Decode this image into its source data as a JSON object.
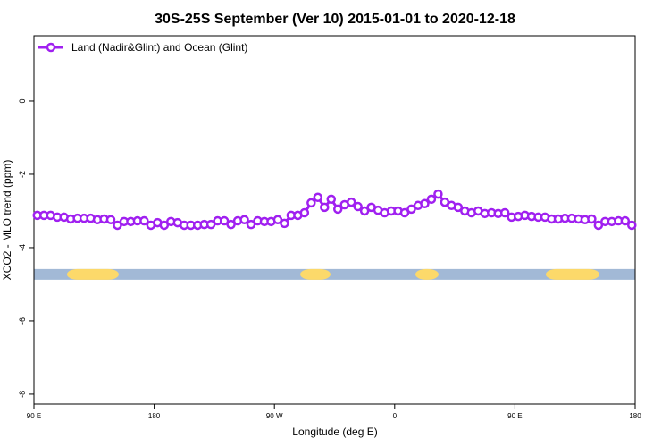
{
  "chart_data": {
    "type": "line",
    "title": "30S-25S September (Ver 10)   2015-01-01 to 2020-12-18",
    "x_label": "Longitude (deg E)",
    "y_label": "XCO2 - MLO trend (ppm)",
    "xlim": [
      90,
      540
    ],
    "ylim": [
      -8.27,
      1.78
    ],
    "xticks": [
      {
        "value": 90,
        "label": "90 E"
      },
      {
        "value": 180,
        "label": "180"
      },
      {
        "value": 270,
        "label": "90 W"
      },
      {
        "value": 360,
        "label": "0"
      },
      {
        "value": 450,
        "label": "90 E"
      },
      {
        "value": 540,
        "label": "180"
      }
    ],
    "yticks": [
      0,
      -2,
      -4,
      -6,
      -8
    ],
    "legend": "top-left",
    "x": [
      92.5,
      97.5,
      102.5,
      107.5,
      112.5,
      117.5,
      122.5,
      127.5,
      132.5,
      137.5,
      142.5,
      147.5,
      152.5,
      157.5,
      162.5,
      167.5,
      172.5,
      177.5,
      182.5,
      187.5,
      192.5,
      197.5,
      202.5,
      207.5,
      212.5,
      217.5,
      222.5,
      227.5,
      232.5,
      237.5,
      242.5,
      247.5,
      252.5,
      257.5,
      262.5,
      267.5,
      272.5,
      277.5,
      282.5,
      287.5,
      292.5,
      297.5,
      302.5,
      307.5,
      312.5,
      317.5,
      322.5,
      327.5,
      332.5,
      337.5,
      342.5,
      347.5,
      352.5,
      357.5,
      362.5,
      367.5,
      372.5,
      377.5,
      382.5,
      387.5,
      392.5,
      397.5,
      402.5,
      407.5,
      412.5,
      417.5,
      422.5,
      427.5,
      432.5,
      437.5,
      442.5,
      447.5,
      452.5,
      457.5,
      462.5,
      467.5,
      472.5,
      477.5,
      482.5,
      487.5,
      492.5,
      497.5,
      502.5,
      507.5,
      512.5,
      517.5,
      522.5,
      527.5,
      532.5,
      537.5
    ],
    "series": [
      {
        "name": "Land (Nadir&Glint) and Ocean (Glint)",
        "color": "#a020f0",
        "values": [
          -3.12,
          -3.12,
          -3.12,
          -3.17,
          -3.17,
          -3.22,
          -3.2,
          -3.2,
          -3.2,
          -3.24,
          -3.22,
          -3.24,
          -3.39,
          -3.29,
          -3.29,
          -3.27,
          -3.27,
          -3.39,
          -3.32,
          -3.39,
          -3.29,
          -3.32,
          -3.39,
          -3.39,
          -3.39,
          -3.37,
          -3.37,
          -3.27,
          -3.27,
          -3.37,
          -3.27,
          -3.24,
          -3.37,
          -3.27,
          -3.29,
          -3.29,
          -3.24,
          -3.34,
          -3.12,
          -3.12,
          -3.05,
          -2.78,
          -2.63,
          -2.9,
          -2.68,
          -2.95,
          -2.83,
          -2.76,
          -2.88,
          -3.0,
          -2.9,
          -2.98,
          -3.05,
          -3.0,
          -3.0,
          -3.05,
          -2.95,
          -2.85,
          -2.8,
          -2.68,
          -2.54,
          -2.76,
          -2.85,
          -2.9,
          -3.0,
          -3.05,
          -3.0,
          -3.07,
          -3.05,
          -3.07,
          -3.05,
          -3.17,
          -3.15,
          -3.12,
          -3.15,
          -3.17,
          -3.17,
          -3.22,
          -3.22,
          -3.2,
          -3.2,
          -3.22,
          -3.24,
          -3.22,
          -3.39,
          -3.29,
          -3.29,
          -3.27,
          -3.27,
          -3.39
        ]
      }
    ],
    "surface_band": {
      "y": -4.73,
      "ocean_color": "#a2b9d6",
      "land_color": "#fcd96a",
      "land": [
        [
          114.7,
          153.5
        ],
        [
          289.3,
          312
        ],
        [
          375.5,
          392.9
        ],
        [
          473.1,
          513.2
        ]
      ]
    }
  }
}
